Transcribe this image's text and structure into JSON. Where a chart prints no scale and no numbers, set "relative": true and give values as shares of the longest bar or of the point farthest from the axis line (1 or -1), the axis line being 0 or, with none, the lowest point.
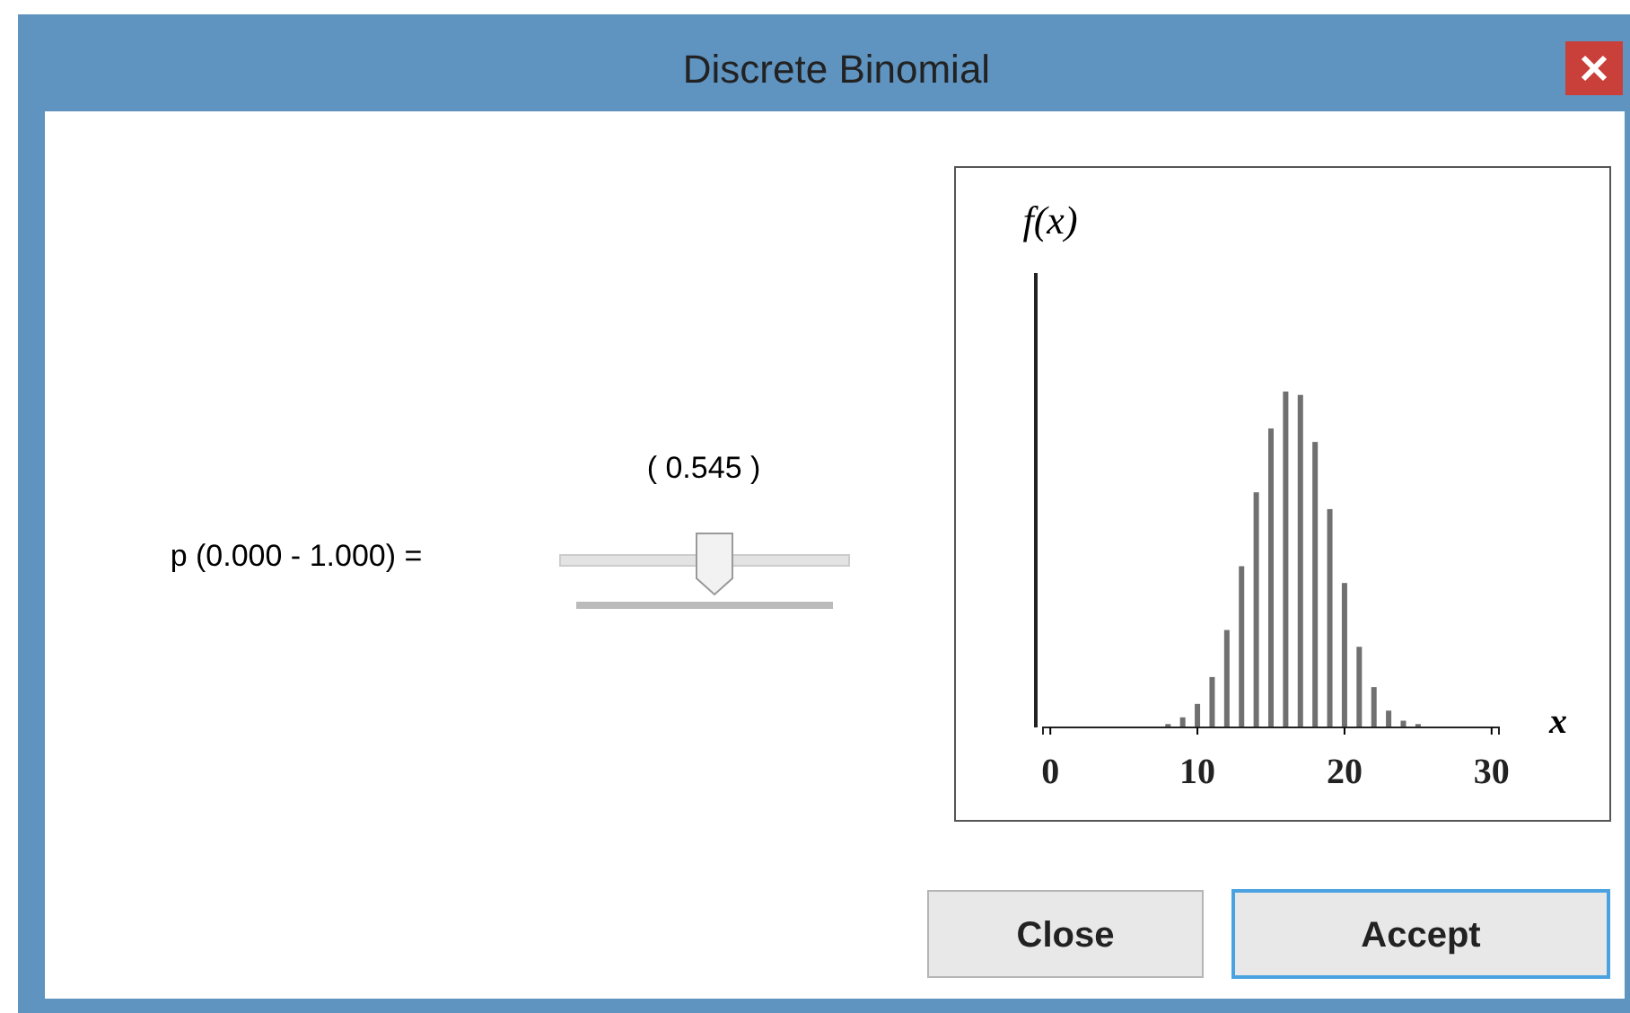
{
  "chart_data": {
    "type": "bar",
    "title": "Discrete Binomial",
    "xlabel": "x",
    "ylabel": "f(x)",
    "relative": true,
    "x": [
      0,
      1,
      2,
      3,
      4,
      5,
      6,
      7,
      8,
      9,
      10,
      11,
      12,
      13,
      14,
      15,
      16,
      17,
      18,
      19,
      20,
      21,
      22,
      23,
      24,
      25,
      26,
      27,
      28,
      29,
      30
    ],
    "values": [
      0,
      0,
      0,
      0,
      0,
      0,
      0,
      0,
      0.01,
      0.03,
      0.07,
      0.15,
      0.29,
      0.48,
      0.7,
      0.89,
      1,
      0.99,
      0.85,
      0.65,
      0.43,
      0.24,
      0.12,
      0.05,
      0.02,
      0.01,
      0,
      0,
      0,
      0,
      0
    ],
    "color": "#707070",
    "xlim": [
      -0.5,
      30.5
    ],
    "xticks": [
      0,
      10,
      20,
      30
    ],
    "annotations": [
      "p (0.000 - 1.000) =",
      "( 0.545 )",
      "Close",
      "Accept"
    ]
  }
}
